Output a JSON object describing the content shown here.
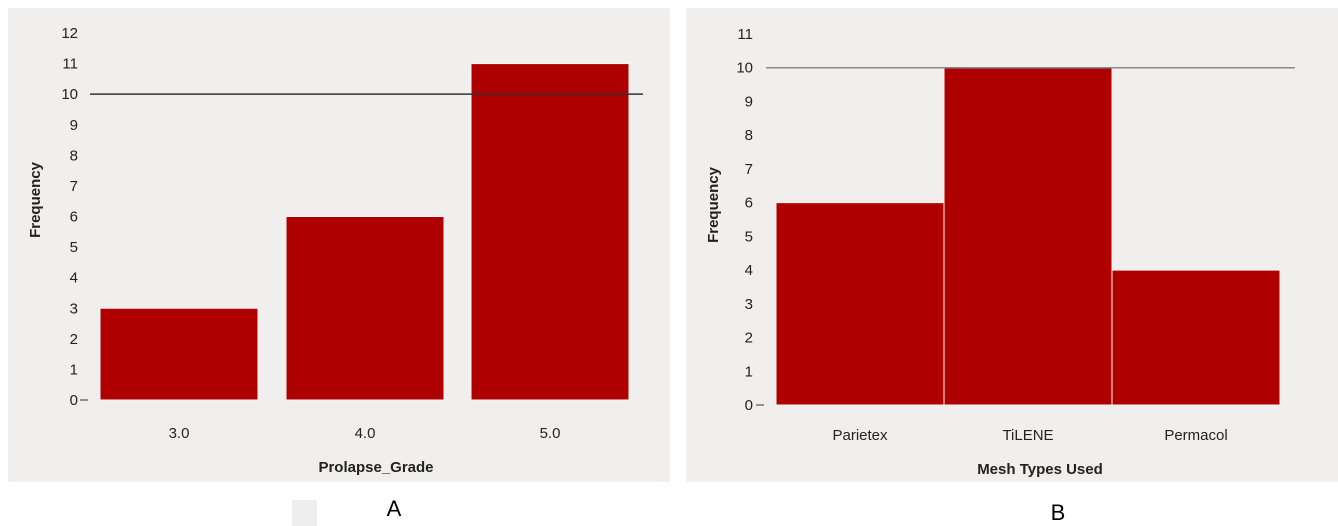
{
  "chart_data": [
    {
      "type": "bar",
      "panel_label": "A",
      "categories": [
        "3.0",
        "4.0",
        "5.0"
      ],
      "values": [
        3,
        6,
        11
      ],
      "xlabel": "Prolapse_Grade",
      "ylabel": "Frequency",
      "ylim": [
        0,
        12
      ],
      "yticks": [
        0,
        1,
        2,
        3,
        4,
        5,
        6,
        7,
        8,
        9,
        10,
        11,
        12
      ],
      "reference_line": 10,
      "grid": false,
      "bar_color": "#ae0000",
      "reference_line_color": "#333333",
      "background_color": "#f0efee"
    },
    {
      "type": "bar",
      "panel_label": "B",
      "categories": [
        "Parietex",
        "TiLENE",
        "Permacol"
      ],
      "values": [
        6,
        10,
        4
      ],
      "xlabel": "Mesh Types Used",
      "ylabel": "Frequency",
      "ylim": [
        0,
        11
      ],
      "yticks": [
        0,
        1,
        2,
        3,
        4,
        5,
        6,
        7,
        8,
        9,
        10,
        11
      ],
      "reference_line": 10,
      "grid": false,
      "bar_color": "#ae0000",
      "reference_line_color": "#888888",
      "background_color": "#f0efee"
    }
  ],
  "legend": {
    "swatch_color": "#eeeeee"
  }
}
